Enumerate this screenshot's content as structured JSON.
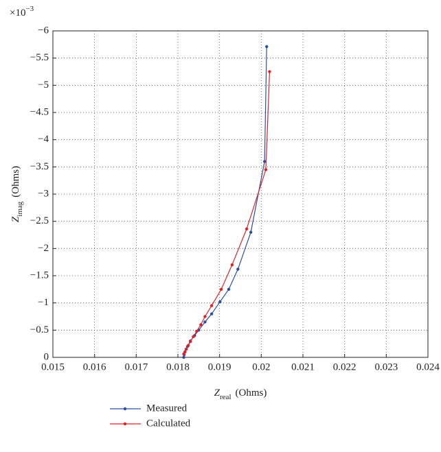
{
  "chart_data": {
    "type": "line",
    "x_label": "Z",
    "x_label_sub": "real",
    "x_label_unit": "(Ohms)",
    "y_label": "Z",
    "y_label_sub": "imag",
    "y_label_unit": "(Ohms)",
    "y_multiplier": "×10",
    "y_multiplier_exp": "−3",
    "xlim": [
      0.015,
      0.024
    ],
    "xticks": [
      0.015,
      0.016,
      0.017,
      0.018,
      0.019,
      0.02,
      0.021,
      0.022,
      0.023,
      0.024
    ],
    "ylim": [
      0,
      -6
    ],
    "yticks": [
      0,
      {
        "value": -0.5,
        "label": "−0.5"
      },
      {
        "value": -1,
        "label": "−1"
      },
      {
        "value": -1.5,
        "label": "−1.5"
      },
      {
        "value": -2,
        "label": "−2"
      },
      {
        "value": -2.5,
        "label": "−2.5"
      },
      {
        "value": -3,
        "label": "−3"
      },
      {
        "value": -3.5,
        "label": "−3.5"
      },
      {
        "value": -4,
        "label": "−4"
      },
      {
        "value": -4.5,
        "label": "−4.5"
      },
      {
        "value": -5,
        "label": "−5"
      },
      {
        "value": -5.5,
        "label": "−5.5"
      },
      {
        "value": -6,
        "label": "−6"
      }
    ],
    "grid": true,
    "grid_style": "dotted",
    "legend": "bottom",
    "series": [
      {
        "name": "Measured",
        "color": "#2c4da0",
        "x": [
          0.01814,
          0.01815,
          0.01817,
          0.0182,
          0.01823,
          0.0183,
          0.0184,
          0.0185,
          0.01865,
          0.01881,
          0.01901,
          0.01922,
          0.01944,
          0.01975,
          0.02008,
          0.02013
        ],
        "values": [
          0,
          -0.05,
          -0.1,
          -0.15,
          -0.2,
          -0.3,
          -0.4,
          -0.5,
          -0.65,
          -0.8,
          -1.02,
          -1.25,
          -1.62,
          -2.3,
          -3.6,
          -5.71
        ]
      },
      {
        "name": "Calculated",
        "color": "#e02128",
        "x": [
          0.01814,
          0.01817,
          0.0182,
          0.01825,
          0.0183,
          0.01837,
          0.01845,
          0.01855,
          0.01865,
          0.01881,
          0.01904,
          0.0193,
          0.01965,
          0.02011,
          0.0202
        ],
        "values": [
          -0.06,
          -0.1,
          -0.15,
          -0.22,
          -0.29,
          -0.38,
          -0.48,
          -0.6,
          -0.75,
          -0.95,
          -1.25,
          -1.7,
          -2.36,
          -3.45,
          -5.25
        ]
      }
    ]
  }
}
